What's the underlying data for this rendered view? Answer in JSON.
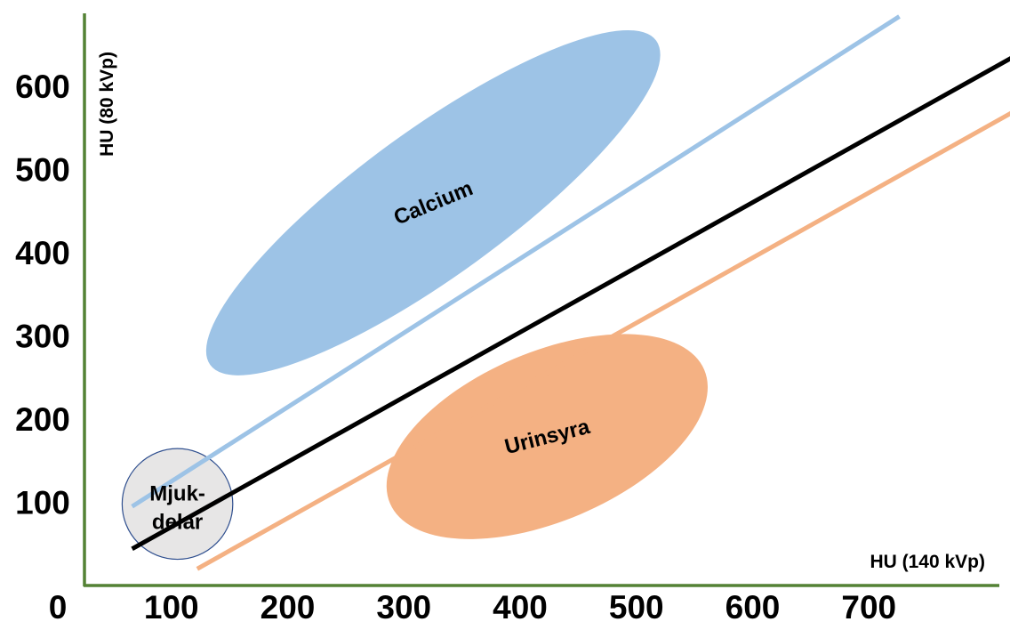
{
  "chart_data": {
    "type": "scatter",
    "title": "",
    "xlabel": "HU (140 kVp)",
    "ylabel": "HU (80 kVp)",
    "xlim": [
      0,
      800
    ],
    "ylim": [
      0,
      700
    ],
    "x_ticks": [
      {
        "value": 0,
        "label": "0"
      },
      {
        "value": 100,
        "label": "100"
      },
      {
        "value": 200,
        "label": "200"
      },
      {
        "value": 300,
        "label": "300"
      },
      {
        "value": 400,
        "label": "400"
      },
      {
        "value": 500,
        "label": "500"
      },
      {
        "value": 600,
        "label": "600"
      },
      {
        "value": 700,
        "label": "700"
      }
    ],
    "y_ticks": [
      {
        "value": 100,
        "label": "100"
      },
      {
        "value": 200,
        "label": "200"
      },
      {
        "value": 300,
        "label": "300"
      },
      {
        "value": 400,
        "label": "400"
      },
      {
        "value": 500,
        "label": "500"
      },
      {
        "value": 600,
        "label": "600"
      }
    ],
    "grid": false,
    "axis_color": "#548235",
    "lines": [
      {
        "id": "calcium-boundary",
        "color": "#9dc3e6",
        "x": [
          41,
          701
        ],
        "y": [
          95,
          684
        ]
      },
      {
        "id": "identity",
        "color": "#000000",
        "x": [
          41,
          828
        ],
        "y": [
          44,
          658
        ]
      },
      {
        "id": "urinsyra-boundary",
        "color": "#f4b183",
        "x": [
          97,
          828
        ],
        "y": [
          20,
          592
        ]
      }
    ],
    "regions": [
      {
        "label": "Calcium",
        "color": "#9dc3e6",
        "cx": 300,
        "cy": 460,
        "rx": 310,
        "ry": 82,
        "rotation": -36
      },
      {
        "label": "Urinsyra",
        "color": "#f4b183",
        "cx": 398,
        "cy": 179,
        "rx": 192,
        "ry": 95,
        "rotation": -23
      },
      {
        "label_lines": [
          "Mjuk-",
          "delar"
        ],
        "color": "#e7e6e6",
        "stroke": "#2f4f8f",
        "cx": 80,
        "cy": 98,
        "r": 61
      }
    ]
  }
}
